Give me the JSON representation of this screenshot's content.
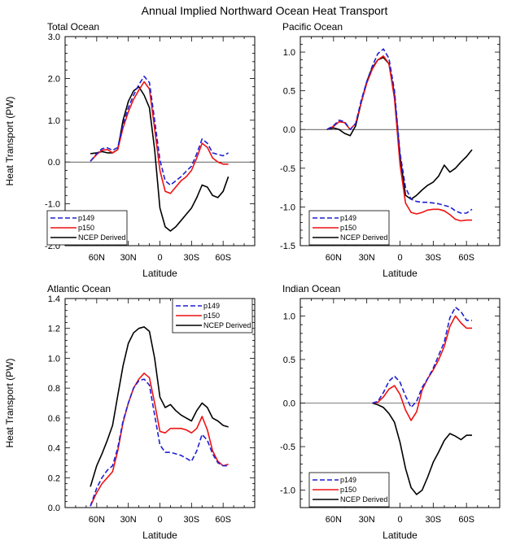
{
  "title": "Annual Implied Northward Ocean Heat Transport",
  "chart_data": [
    {
      "type": "line",
      "title": "Total Ocean",
      "xlabel": "Latitude",
      "ylabel": "Heat Transport (PW)",
      "xlim": [
        90,
        -90
      ],
      "ylim": [
        -2.0,
        3.0
      ],
      "xticks": [
        {
          "v": 60,
          "label": "60N"
        },
        {
          "v": 30,
          "label": "30N"
        },
        {
          "v": 0,
          "label": "0"
        },
        {
          "v": -30,
          "label": "30S"
        },
        {
          "v": -60,
          "label": "60S"
        }
      ],
      "yticks": [
        {
          "v": 3.0,
          "label": "3.0"
        },
        {
          "v": 2.0,
          "label": "2.0"
        },
        {
          "v": 1.0,
          "label": "1.0"
        },
        {
          "v": 0.0,
          "label": "0.0"
        },
        {
          "v": -1.0,
          "label": "-1.0"
        },
        {
          "v": -2.0,
          "label": "-2.0"
        }
      ],
      "legend_position": "bottom-left",
      "series": [
        {
          "name": "p149",
          "color": "#1f1fd2",
          "dash": "6,3",
          "x": [
            66,
            60,
            55,
            50,
            45,
            40,
            35,
            30,
            25,
            20,
            15,
            10,
            5,
            0,
            -5,
            -10,
            -15,
            -20,
            -25,
            -30,
            -35,
            -40,
            -45,
            -50,
            -55,
            -60,
            -65
          ],
          "y": [
            0.02,
            0.2,
            0.32,
            0.34,
            0.28,
            0.35,
            0.9,
            1.3,
            1.6,
            1.85,
            2.05,
            1.9,
            1.0,
            0.05,
            -0.45,
            -0.55,
            -0.45,
            -0.35,
            -0.22,
            -0.1,
            0.2,
            0.55,
            0.45,
            0.22,
            0.18,
            0.15,
            0.22
          ]
        },
        {
          "name": "p150",
          "color": "#ee1111",
          "dash": "",
          "x": [
            66,
            60,
            55,
            50,
            45,
            40,
            35,
            30,
            25,
            20,
            15,
            10,
            5,
            0,
            -5,
            -10,
            -15,
            -20,
            -25,
            -30,
            -35,
            -40,
            -45,
            -50,
            -55,
            -60,
            -65
          ],
          "y": [
            0.02,
            0.18,
            0.28,
            0.3,
            0.22,
            0.3,
            0.82,
            1.2,
            1.5,
            1.72,
            1.92,
            1.75,
            0.8,
            -0.2,
            -0.7,
            -0.75,
            -0.6,
            -0.45,
            -0.35,
            -0.2,
            0.1,
            0.45,
            0.35,
            0.1,
            0.0,
            -0.05,
            -0.05
          ]
        },
        {
          "name": "NCEP Derived",
          "color": "#000000",
          "dash": "",
          "x": [
            66,
            60,
            55,
            50,
            45,
            40,
            35,
            30,
            25,
            20,
            15,
            10,
            5,
            0,
            -5,
            -10,
            -15,
            -20,
            -25,
            -30,
            -35,
            -40,
            -45,
            -50,
            -55,
            -60,
            -65
          ],
          "y": [
            0.2,
            0.22,
            0.25,
            0.22,
            0.22,
            0.3,
            1.0,
            1.45,
            1.7,
            1.8,
            1.6,
            1.3,
            0.3,
            -1.1,
            -1.55,
            -1.65,
            -1.55,
            -1.4,
            -1.25,
            -1.1,
            -0.85,
            -0.55,
            -0.6,
            -0.8,
            -0.85,
            -0.7,
            -0.35
          ]
        }
      ]
    },
    {
      "type": "line",
      "title": "Pacific Ocean",
      "xlabel": "Latitude",
      "ylabel": "",
      "xlim": [
        90,
        -90
      ],
      "ylim": [
        -1.5,
        1.2
      ],
      "xticks": [
        {
          "v": 60,
          "label": "60N"
        },
        {
          "v": 30,
          "label": "30N"
        },
        {
          "v": 0,
          "label": "0"
        },
        {
          "v": -30,
          "label": "30S"
        },
        {
          "v": -60,
          "label": "60S"
        }
      ],
      "yticks": [
        {
          "v": 1.0,
          "label": "1.0"
        },
        {
          "v": 0.5,
          "label": "0.5"
        },
        {
          "v": 0.0,
          "label": "0.0"
        },
        {
          "v": -0.5,
          "label": "-0.5"
        },
        {
          "v": -1.0,
          "label": "-1.0"
        },
        {
          "v": -1.5,
          "label": "-1.5"
        }
      ],
      "legend_position": "bottom-left",
      "series": [
        {
          "name": "p149",
          "color": "#1f1fd2",
          "dash": "6,3",
          "x": [
            66,
            60,
            55,
            50,
            45,
            40,
            35,
            30,
            25,
            20,
            15,
            10,
            5,
            0,
            -5,
            -10,
            -15,
            -20,
            -25,
            -30,
            -35,
            -40,
            -45,
            -50,
            -55,
            -60,
            -65
          ],
          "y": [
            0.0,
            0.05,
            0.12,
            0.1,
            0.0,
            0.08,
            0.38,
            0.62,
            0.82,
            0.98,
            1.04,
            0.92,
            0.5,
            -0.3,
            -0.75,
            -0.9,
            -0.93,
            -0.94,
            -0.94,
            -0.95,
            -0.96,
            -0.98,
            -1.0,
            -1.05,
            -1.08,
            -1.08,
            -1.03
          ]
        },
        {
          "name": "p150",
          "color": "#ee1111",
          "dash": "",
          "x": [
            66,
            60,
            55,
            50,
            45,
            40,
            35,
            30,
            25,
            20,
            15,
            10,
            5,
            0,
            -5,
            -10,
            -15,
            -20,
            -25,
            -30,
            -35,
            -40,
            -45,
            -50,
            -55,
            -60,
            -65
          ],
          "y": [
            0.0,
            0.04,
            0.1,
            0.09,
            0.0,
            0.08,
            0.35,
            0.6,
            0.78,
            0.9,
            0.95,
            0.85,
            0.4,
            -0.45,
            -0.95,
            -1.07,
            -1.09,
            -1.07,
            -1.04,
            -1.03,
            -1.03,
            -1.05,
            -1.1,
            -1.16,
            -1.18,
            -1.17,
            -1.17
          ]
        },
        {
          "name": "NCEP Derived",
          "color": "#000000",
          "dash": "",
          "x": [
            66,
            60,
            55,
            50,
            45,
            40,
            35,
            30,
            25,
            20,
            15,
            10,
            5,
            0,
            -5,
            -10,
            -15,
            -20,
            -25,
            -30,
            -35,
            -40,
            -45,
            -50,
            -55,
            -60,
            -65
          ],
          "y": [
            0.0,
            0.02,
            0.0,
            -0.05,
            -0.08,
            0.05,
            0.35,
            0.62,
            0.8,
            0.9,
            0.93,
            0.85,
            0.45,
            -0.35,
            -0.85,
            -0.9,
            -0.85,
            -0.78,
            -0.72,
            -0.68,
            -0.6,
            -0.46,
            -0.55,
            -0.5,
            -0.42,
            -0.35,
            -0.26
          ]
        }
      ]
    },
    {
      "type": "line",
      "title": "Atlantic Ocean",
      "xlabel": "Latitude",
      "ylabel": "Heat Transport (PW)",
      "xlim": [
        90,
        -90
      ],
      "ylim": [
        0.0,
        1.4
      ],
      "xticks": [
        {
          "v": 60,
          "label": "60N"
        },
        {
          "v": 30,
          "label": "30N"
        },
        {
          "v": 0,
          "label": "0"
        },
        {
          "v": -30,
          "label": "30S"
        },
        {
          "v": -60,
          "label": "60S"
        }
      ],
      "yticks": [
        {
          "v": 1.4,
          "label": "1.4"
        },
        {
          "v": 1.2,
          "label": "1.2"
        },
        {
          "v": 1.0,
          "label": "1.0"
        },
        {
          "v": 0.8,
          "label": "0.8"
        },
        {
          "v": 0.6,
          "label": "0.6"
        },
        {
          "v": 0.4,
          "label": "0.4"
        },
        {
          "v": 0.2,
          "label": "0.2"
        },
        {
          "v": 0.0,
          "label": "0.0"
        }
      ],
      "legend_position": "top-right",
      "series": [
        {
          "name": "p149",
          "color": "#1f1fd2",
          "dash": "6,3",
          "x": [
            66,
            60,
            55,
            50,
            45,
            40,
            35,
            30,
            25,
            20,
            15,
            10,
            5,
            0,
            -5,
            -10,
            -15,
            -20,
            -25,
            -30,
            -35,
            -40,
            -45,
            -50,
            -55,
            -60,
            -65
          ],
          "y": [
            0.01,
            0.13,
            0.2,
            0.25,
            0.28,
            0.4,
            0.58,
            0.7,
            0.8,
            0.85,
            0.86,
            0.82,
            0.62,
            0.42,
            0.37,
            0.37,
            0.36,
            0.35,
            0.33,
            0.31,
            0.38,
            0.49,
            0.45,
            0.36,
            0.3,
            0.28,
            0.28
          ]
        },
        {
          "name": "p150",
          "color": "#ee1111",
          "dash": "",
          "x": [
            66,
            60,
            55,
            50,
            45,
            40,
            35,
            30,
            25,
            20,
            15,
            10,
            5,
            0,
            -5,
            -10,
            -15,
            -20,
            -25,
            -30,
            -35,
            -40,
            -45,
            -50,
            -55,
            -60,
            -65
          ],
          "y": [
            0.01,
            0.1,
            0.16,
            0.2,
            0.24,
            0.38,
            0.57,
            0.7,
            0.8,
            0.86,
            0.9,
            0.87,
            0.7,
            0.51,
            0.5,
            0.53,
            0.53,
            0.53,
            0.52,
            0.5,
            0.53,
            0.61,
            0.52,
            0.38,
            0.31,
            0.28,
            0.29
          ]
        },
        {
          "name": "NCEP Derived",
          "color": "#000000",
          "dash": "",
          "x": [
            66,
            60,
            55,
            50,
            45,
            40,
            35,
            30,
            25,
            20,
            15,
            10,
            5,
            0,
            -5,
            -10,
            -15,
            -20,
            -25,
            -30,
            -35,
            -40,
            -45,
            -50,
            -55,
            -60,
            -65
          ],
          "y": [
            0.14,
            0.28,
            0.36,
            0.45,
            0.55,
            0.75,
            0.95,
            1.1,
            1.17,
            1.2,
            1.21,
            1.18,
            1.0,
            0.74,
            0.67,
            0.69,
            0.65,
            0.62,
            0.6,
            0.58,
            0.65,
            0.7,
            0.67,
            0.6,
            0.58,
            0.55,
            0.54
          ]
        }
      ]
    },
    {
      "type": "line",
      "title": "Indian Ocean",
      "xlabel": "Latitude",
      "ylabel": "",
      "xlim": [
        90,
        -90
      ],
      "ylim": [
        -1.2,
        1.2
      ],
      "xticks": [
        {
          "v": 60,
          "label": "60N"
        },
        {
          "v": 30,
          "label": "30N"
        },
        {
          "v": 0,
          "label": "0"
        },
        {
          "v": -30,
          "label": "30S"
        },
        {
          "v": -60,
          "label": "60S"
        }
      ],
      "yticks": [
        {
          "v": 1.0,
          "label": "1.0"
        },
        {
          "v": 0.5,
          "label": "0.5"
        },
        {
          "v": 0.0,
          "label": "0.0"
        },
        {
          "v": -0.5,
          "label": "-0.5"
        },
        {
          "v": -1.0,
          "label": "-1.0"
        }
      ],
      "legend_position": "bottom-left",
      "series": [
        {
          "name": "p149",
          "color": "#1f1fd2",
          "dash": "6,3",
          "x": [
            25,
            20,
            15,
            10,
            5,
            0,
            -5,
            -10,
            -15,
            -20,
            -25,
            -30,
            -35,
            -40,
            -45,
            -50,
            -55,
            -60,
            -65
          ],
          "y": [
            0.0,
            0.02,
            0.12,
            0.25,
            0.31,
            0.24,
            0.08,
            -0.05,
            0.02,
            0.18,
            0.28,
            0.4,
            0.55,
            0.7,
            0.98,
            1.1,
            1.05,
            0.95,
            0.95
          ]
        },
        {
          "name": "p150",
          "color": "#ee1111",
          "dash": "",
          "x": [
            25,
            20,
            15,
            10,
            5,
            0,
            -5,
            -10,
            -15,
            -20,
            -25,
            -30,
            -35,
            -40,
            -45,
            -50,
            -55,
            -60,
            -65
          ],
          "y": [
            0.0,
            0.01,
            0.07,
            0.16,
            0.2,
            0.1,
            -0.08,
            -0.2,
            -0.1,
            0.15,
            0.28,
            0.38,
            0.5,
            0.65,
            0.88,
            1.0,
            0.92,
            0.86,
            0.86
          ]
        },
        {
          "name": "NCEP Derived",
          "color": "#000000",
          "dash": "",
          "x": [
            25,
            20,
            15,
            10,
            5,
            0,
            -5,
            -10,
            -15,
            -20,
            -25,
            -30,
            -35,
            -40,
            -45,
            -50,
            -55,
            -60,
            -65
          ],
          "y": [
            0.0,
            -0.02,
            -0.05,
            -0.12,
            -0.22,
            -0.45,
            -0.75,
            -0.97,
            -1.05,
            -1.0,
            -0.85,
            -0.68,
            -0.56,
            -0.43,
            -0.35,
            -0.38,
            -0.42,
            -0.37,
            -0.37
          ]
        }
      ]
    }
  ]
}
